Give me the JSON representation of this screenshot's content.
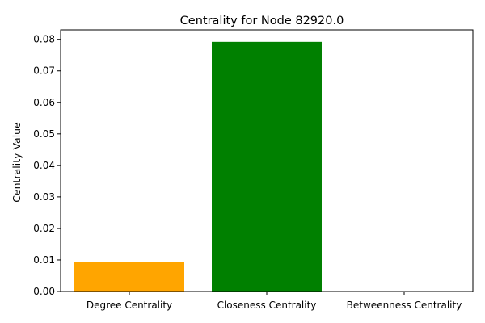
{
  "chart_data": {
    "type": "bar",
    "title": "Centrality for Node 82920.0",
    "xlabel": "",
    "ylabel": "Centrality Value",
    "categories": [
      "Degree Centrality",
      "Closeness Centrality",
      "Betweenness Centrality"
    ],
    "values": [
      0.0093,
      0.0792,
      0.0
    ],
    "colors": [
      "#ffa500",
      "#008000",
      "#ff0000"
    ],
    "ylim": [
      0,
      0.083
    ],
    "yticks": [
      0.0,
      0.01,
      0.02,
      0.03,
      0.04,
      0.05,
      0.06,
      0.07,
      0.08
    ],
    "ytick_labels": [
      "0.00",
      "0.01",
      "0.02",
      "0.03",
      "0.04",
      "0.05",
      "0.06",
      "0.07",
      "0.08"
    ],
    "grid": false,
    "legend": "none"
  }
}
